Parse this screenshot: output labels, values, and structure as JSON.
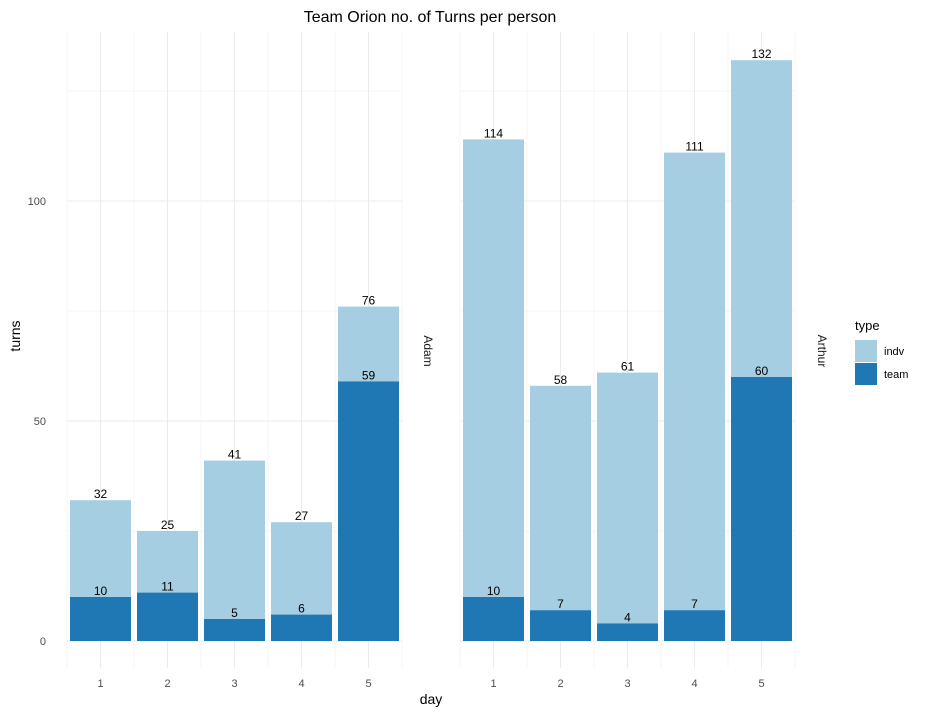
{
  "chart_data": {
    "type": "bar",
    "stacked": true,
    "title": "Team Orion no. of Turns per person",
    "xlabel": "day",
    "ylabel": "turns",
    "ylim": [
      0,
      132
    ],
    "yticks": [
      0,
      50,
      100
    ],
    "categories": [
      "1",
      "2",
      "3",
      "4",
      "5"
    ],
    "legend": {
      "title": "type",
      "placement": "right",
      "entries": [
        {
          "name": "indv",
          "color": "#a6cee3"
        },
        {
          "name": "team",
          "color": "#1f78b4"
        }
      ]
    },
    "facets": [
      {
        "name": "Adam",
        "totals": [
          32,
          25,
          41,
          27,
          76
        ],
        "team": [
          10,
          11,
          5,
          6,
          59
        ]
      },
      {
        "name": "Arthur",
        "totals": [
          114,
          58,
          61,
          111,
          132
        ],
        "team": [
          10,
          7,
          4,
          7,
          60
        ]
      }
    ],
    "grid": true
  }
}
